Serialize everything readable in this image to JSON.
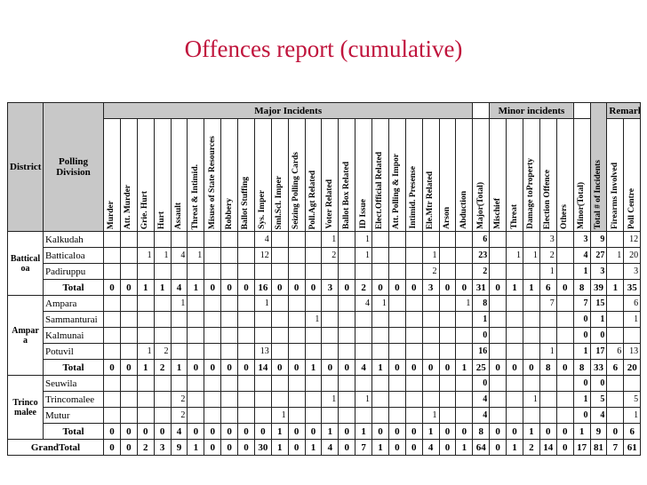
{
  "title": "Offences report (cumulative)",
  "table": {
    "group_headers": {
      "major": "Major Incidents",
      "minor": "Minor incidents",
      "remarks": "Remarks"
    },
    "headers": {
      "district": "District",
      "polling_division": "Polling Division",
      "columns": [
        "Murder",
        "Att. Murder",
        "Grie. Hurt",
        "Hurt",
        "Assault",
        "Threat & Intimid.",
        "Misuse of State Resources",
        "Robbery",
        "Ballot Stuffing",
        "Sys. Imper",
        "Sml.Scl. Imper",
        "Seizing Polling Cards",
        "Poll.Agt Related",
        "Voter Related",
        "Ballot Box Related",
        "ID Issue",
        "Elect.Official Related",
        "Att. Polling & Impor",
        "Intimid. Presense",
        "Ele.Mtr Related",
        "Arson",
        "Abduction",
        "Major(Total)",
        "Mischief",
        "Threat",
        "Damage toProperty",
        "Election Offence",
        "Others",
        "Minor(Total)",
        "Total # of Incidents",
        "Firearms Involved",
        "Poll Centre"
      ]
    },
    "districts": [
      {
        "name": "Batticaloa",
        "rows": [
          {
            "division": "Kalkudah",
            "cells": [
              null,
              null,
              null,
              null,
              null,
              null,
              null,
              null,
              null,
              4,
              null,
              null,
              null,
              1,
              null,
              1,
              null,
              null,
              null,
              null,
              null,
              null,
              6,
              null,
              null,
              null,
              3,
              null,
              3,
              9,
              null,
              12
            ]
          },
          {
            "division": "Batticaloa",
            "cells": [
              null,
              null,
              1,
              1,
              4,
              1,
              null,
              null,
              null,
              12,
              null,
              null,
              null,
              2,
              null,
              1,
              null,
              null,
              null,
              1,
              null,
              null,
              23,
              null,
              1,
              1,
              2,
              null,
              4,
              27,
              1,
              20
            ]
          },
          {
            "division": "Padiruppu",
            "cells": [
              null,
              null,
              null,
              null,
              null,
              null,
              null,
              null,
              null,
              null,
              null,
              null,
              null,
              null,
              null,
              null,
              null,
              null,
              null,
              2,
              null,
              null,
              2,
              null,
              null,
              null,
              1,
              null,
              1,
              3,
              null,
              3
            ]
          }
        ],
        "total": {
          "label": "Total",
          "cells": [
            0,
            0,
            1,
            1,
            4,
            1,
            0,
            0,
            0,
            16,
            0,
            0,
            0,
            3,
            0,
            2,
            0,
            0,
            0,
            3,
            0,
            0,
            31,
            0,
            1,
            1,
            6,
            0,
            8,
            39,
            1,
            35
          ]
        }
      },
      {
        "name": "Ampara",
        "rows": [
          {
            "division": "Ampara",
            "cells": [
              null,
              null,
              null,
              null,
              1,
              null,
              null,
              null,
              null,
              1,
              null,
              null,
              null,
              null,
              null,
              4,
              1,
              null,
              null,
              null,
              null,
              1,
              8,
              null,
              null,
              null,
              7,
              null,
              7,
              15,
              null,
              6
            ]
          },
          {
            "division": "Sammanturai",
            "cells": [
              null,
              null,
              null,
              null,
              null,
              null,
              null,
              null,
              null,
              null,
              null,
              null,
              1,
              null,
              null,
              null,
              null,
              null,
              null,
              null,
              null,
              null,
              1,
              null,
              null,
              null,
              null,
              null,
              0,
              1,
              null,
              1
            ]
          },
          {
            "division": "Kalmunai",
            "cells": [
              null,
              null,
              null,
              null,
              null,
              null,
              null,
              null,
              null,
              null,
              null,
              null,
              null,
              null,
              null,
              null,
              null,
              null,
              null,
              null,
              null,
              null,
              0,
              null,
              null,
              null,
              null,
              null,
              0,
              0,
              null,
              null
            ]
          },
          {
            "division": "Potuvil",
            "cells": [
              null,
              null,
              1,
              2,
              null,
              null,
              null,
              null,
              null,
              13,
              null,
              null,
              null,
              null,
              null,
              null,
              null,
              null,
              null,
              null,
              null,
              null,
              16,
              null,
              null,
              null,
              1,
              null,
              1,
              17,
              6,
              13
            ]
          }
        ],
        "total": {
          "label": "Total",
          "cells": [
            0,
            0,
            1,
            2,
            1,
            0,
            0,
            0,
            0,
            14,
            0,
            0,
            1,
            0,
            0,
            4,
            1,
            0,
            0,
            0,
            0,
            1,
            25,
            0,
            0,
            0,
            8,
            0,
            8,
            33,
            6,
            20
          ]
        }
      },
      {
        "name": "Trincomalee",
        "rows": [
          {
            "division": "Seuwila",
            "cells": [
              null,
              null,
              null,
              null,
              null,
              null,
              null,
              null,
              null,
              null,
              null,
              null,
              null,
              null,
              null,
              null,
              null,
              null,
              null,
              null,
              null,
              null,
              0,
              null,
              null,
              null,
              null,
              null,
              0,
              0,
              null,
              null
            ]
          },
          {
            "division": "Trincomalee",
            "cells": [
              null,
              null,
              null,
              null,
              2,
              null,
              null,
              null,
              null,
              null,
              null,
              null,
              null,
              1,
              null,
              1,
              null,
              null,
              null,
              null,
              null,
              null,
              4,
              null,
              null,
              1,
              null,
              null,
              1,
              5,
              null,
              5
            ]
          },
          {
            "division": "Mutur",
            "cells": [
              null,
              null,
              null,
              null,
              2,
              null,
              null,
              null,
              null,
              null,
              1,
              null,
              null,
              null,
              null,
              null,
              null,
              null,
              null,
              1,
              null,
              null,
              4,
              null,
              null,
              null,
              null,
              null,
              0,
              4,
              null,
              1
            ]
          }
        ],
        "total": {
          "label": "Total",
          "cells": [
            0,
            0,
            0,
            0,
            4,
            0,
            0,
            0,
            0,
            0,
            1,
            0,
            0,
            1,
            0,
            1,
            0,
            0,
            0,
            1,
            0,
            0,
            8,
            0,
            0,
            1,
            0,
            0,
            1,
            9,
            0,
            6
          ]
        }
      }
    ],
    "grand_total": {
      "label": "GrandTotal",
      "cells": [
        0,
        0,
        2,
        3,
        9,
        1,
        0,
        0,
        0,
        30,
        1,
        0,
        1,
        4,
        0,
        7,
        1,
        0,
        0,
        4,
        0,
        1,
        64,
        0,
        1,
        2,
        14,
        0,
        17,
        81,
        7,
        61
      ]
    }
  }
}
